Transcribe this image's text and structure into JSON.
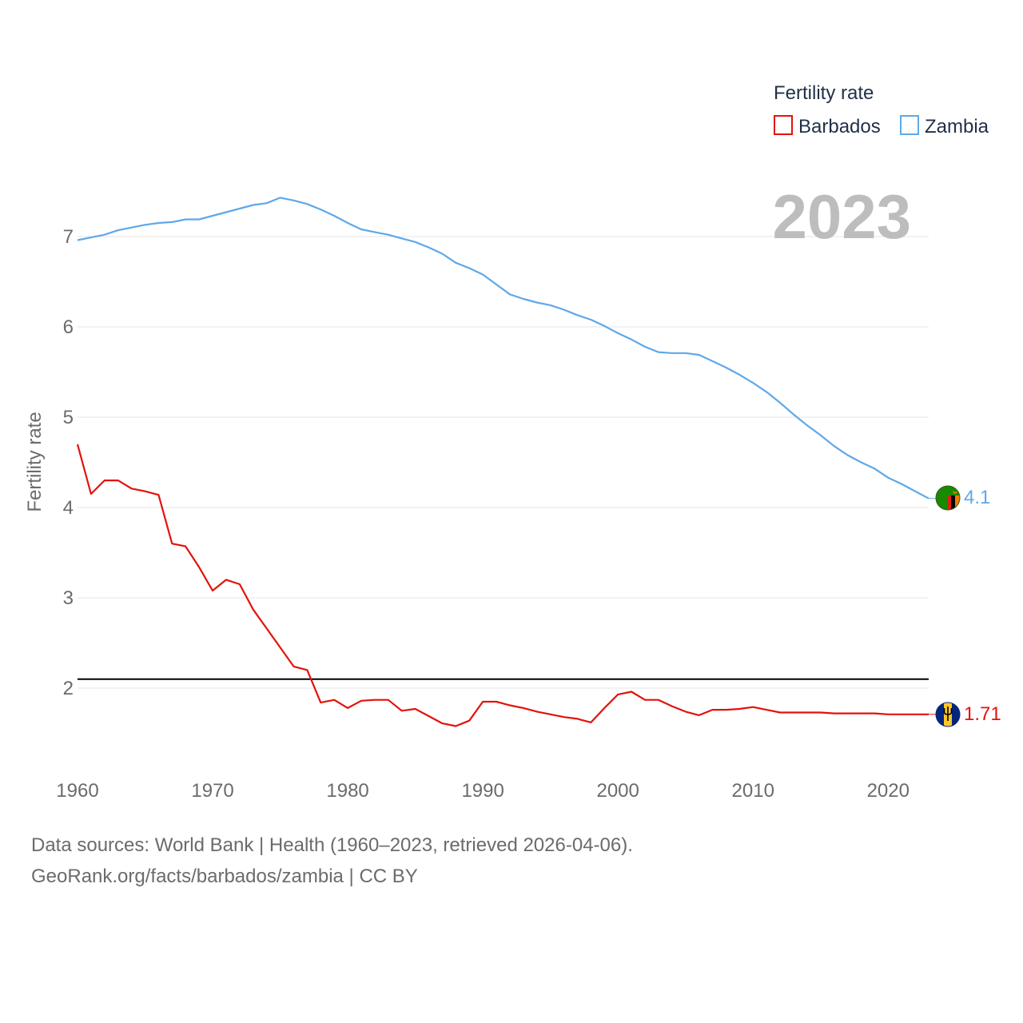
{
  "chart_data": {
    "type": "line",
    "title": "Fertility rate",
    "ylabel": "Fertility rate",
    "xlabel": "",
    "year_label": "2023",
    "xlim": [
      1960,
      2023
    ],
    "ylim": [
      1.1,
      7.8
    ],
    "x_ticks": [
      1960,
      1970,
      1980,
      1990,
      2000,
      2010,
      2020
    ],
    "y_ticks": [
      2,
      3,
      4,
      5,
      6,
      7
    ],
    "reference_line": {
      "value": 2.1,
      "color": "#000000"
    },
    "legend": {
      "title": "Fertility rate",
      "placement": "top-right"
    },
    "x": [
      1960,
      1961,
      1962,
      1963,
      1964,
      1965,
      1966,
      1967,
      1968,
      1969,
      1970,
      1971,
      1972,
      1973,
      1974,
      1975,
      1976,
      1977,
      1978,
      1979,
      1980,
      1981,
      1982,
      1983,
      1984,
      1985,
      1986,
      1987,
      1988,
      1989,
      1990,
      1991,
      1992,
      1993,
      1994,
      1995,
      1996,
      1997,
      1998,
      1999,
      2000,
      2001,
      2002,
      2003,
      2004,
      2005,
      2006,
      2007,
      2008,
      2009,
      2010,
      2011,
      2012,
      2013,
      2014,
      2015,
      2016,
      2017,
      2018,
      2019,
      2020,
      2021,
      2022,
      2023
    ],
    "series": [
      {
        "name": "Barbados",
        "color": "#e3120b",
        "flag": "barbados-flag",
        "end_label": "1.71",
        "values": [
          4.7,
          4.15,
          4.3,
          4.3,
          4.21,
          4.18,
          4.14,
          3.6,
          3.57,
          3.34,
          3.08,
          3.2,
          3.15,
          2.87,
          2.66,
          2.45,
          2.24,
          2.2,
          1.84,
          1.87,
          1.78,
          1.86,
          1.87,
          1.87,
          1.75,
          1.77,
          1.69,
          1.61,
          1.58,
          1.64,
          1.85,
          1.85,
          1.81,
          1.78,
          1.74,
          1.71,
          1.68,
          1.66,
          1.62,
          1.78,
          1.93,
          1.96,
          1.87,
          1.87,
          1.8,
          1.74,
          1.7,
          1.76,
          1.76,
          1.77,
          1.79,
          1.76,
          1.73,
          1.73,
          1.73,
          1.73,
          1.72,
          1.72,
          1.72,
          1.72,
          1.71,
          1.71,
          1.71,
          1.71
        ]
      },
      {
        "name": "Zambia",
        "color": "#5fa8e8",
        "flag": "zambia-flag",
        "end_label": "4.1",
        "values": [
          6.96,
          6.99,
          7.02,
          7.07,
          7.1,
          7.13,
          7.15,
          7.16,
          7.19,
          7.19,
          7.23,
          7.27,
          7.31,
          7.35,
          7.37,
          7.43,
          7.4,
          7.36,
          7.3,
          7.23,
          7.15,
          7.08,
          7.05,
          7.02,
          6.98,
          6.94,
          6.88,
          6.81,
          6.71,
          6.65,
          6.58,
          6.47,
          6.36,
          6.31,
          6.27,
          6.24,
          6.19,
          6.13,
          6.08,
          6.01,
          5.93,
          5.86,
          5.78,
          5.72,
          5.71,
          5.71,
          5.69,
          5.62,
          5.55,
          5.47,
          5.38,
          5.28,
          5.16,
          5.03,
          4.91,
          4.8,
          4.68,
          4.58,
          4.5,
          4.43,
          4.33,
          4.26,
          4.18,
          4.1
        ]
      }
    ]
  },
  "footer": {
    "source": "Data sources: World Bank | Health (1960–2023, retrieved 2026-04-06).",
    "credit": "GeoRank.org/facts/barbados/zambia | CC BY"
  }
}
